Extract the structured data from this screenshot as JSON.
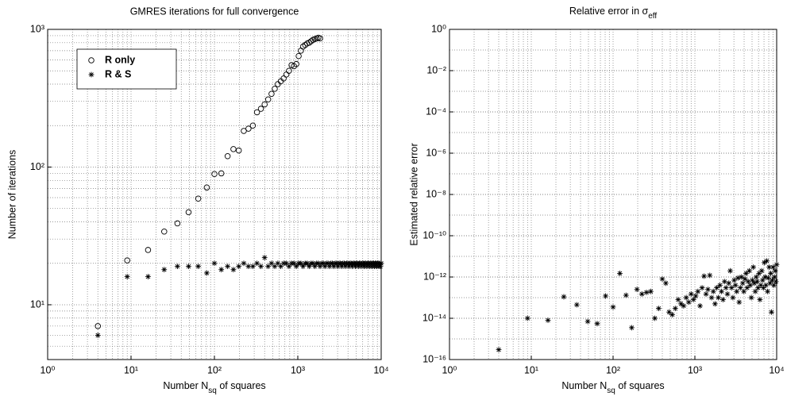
{
  "chart_data": [
    {
      "type": "scatter",
      "title": "GMRES iterations for full convergence",
      "x_label": [
        "Number ",
        "N",
        "sq",
        " of squares"
      ],
      "y_label": "Number of iterations",
      "xscale": "log",
      "yscale": "log",
      "grid": true,
      "minor_grid": true,
      "legend": "upper left",
      "xlim": [
        1,
        10000
      ],
      "ylim": [
        4,
        1000
      ],
      "xticks": [
        {
          "value": 1,
          "label": "10⁰"
        },
        {
          "value": 10,
          "label": "10¹"
        },
        {
          "value": 100,
          "label": "10²"
        },
        {
          "value": 1000,
          "label": "10³"
        },
        {
          "value": 10000,
          "label": "10⁴"
        }
      ],
      "yticks": [
        {
          "value": 10,
          "label": "10¹"
        },
        {
          "value": 100,
          "label": "10²"
        },
        {
          "value": 1000,
          "label": "10³"
        }
      ],
      "series": [
        {
          "name": "R only",
          "color": "#000000",
          "marker": "circle",
          "x": [
            4,
            9,
            16,
            25,
            36,
            49,
            64,
            81,
            100,
            121,
            144,
            169,
            196,
            225,
            256,
            289,
            324,
            361,
            400,
            441,
            484,
            529,
            576,
            625,
            676,
            729,
            784,
            841,
            900,
            961,
            1024,
            1089,
            1156,
            1225,
            1296,
            1369,
            1444,
            1521,
            1600,
            1681,
            1764,
            1849
          ],
          "values": [
            7,
            21,
            25,
            34,
            39,
            47,
            59,
            71,
            89,
            90,
            120,
            135,
            132,
            183,
            190,
            200,
            250,
            265,
            285,
            310,
            340,
            370,
            400,
            420,
            440,
            470,
            500,
            550,
            540,
            560,
            640,
            700,
            750,
            770,
            790,
            800,
            820,
            840,
            850,
            860,
            870,
            860
          ]
        },
        {
          "name": "R & S",
          "color": "#000000",
          "marker": "asterisk",
          "x": [
            4,
            9,
            16,
            25,
            36,
            49,
            64,
            81,
            100,
            121,
            144,
            169,
            196,
            225,
            256,
            289,
            324,
            361,
            400,
            441,
            484,
            529,
            576,
            625,
            676,
            729,
            784,
            841,
            900,
            961,
            1024,
            1089,
            1156,
            1225,
            1296,
            1369,
            1444,
            1521,
            1600,
            1681,
            1764,
            1849,
            1936,
            2025,
            2116,
            2209,
            2304,
            2401,
            2500,
            2601,
            2704,
            2809,
            2916,
            3025,
            3136,
            3249,
            3364,
            3481,
            3600,
            3721,
            3844,
            3969,
            4096,
            4225,
            4356,
            4489,
            4624,
            4761,
            4900,
            5041,
            5184,
            5329,
            5476,
            5625,
            5776,
            5929,
            6084,
            6241,
            6400,
            6561,
            6724,
            6889,
            7056,
            7225,
            7396,
            7569,
            7744,
            7921,
            8100,
            8281,
            8464,
            8649,
            8836,
            9025,
            9216,
            9409,
            9604,
            9801,
            10000
          ],
          "values": [
            6,
            16,
            16,
            18,
            19,
            19,
            19,
            17,
            20,
            18,
            19,
            18,
            19,
            20,
            19,
            19,
            20,
            19,
            22,
            19,
            20,
            19,
            20,
            19,
            20,
            20,
            19,
            20,
            20,
            19,
            20,
            20,
            19,
            20,
            20,
            19,
            20,
            20,
            19,
            20,
            20,
            19,
            20,
            20,
            19,
            20,
            20,
            19,
            20,
            20,
            19,
            20,
            20,
            19,
            20,
            20,
            19,
            20,
            20,
            19,
            20,
            20,
            19,
            20,
            20,
            19,
            20,
            20,
            19,
            20,
            20,
            19,
            20,
            20,
            19,
            20,
            20,
            19,
            20,
            20,
            19,
            20,
            20,
            19,
            20,
            20,
            19,
            20,
            20,
            19,
            20,
            20,
            19,
            20,
            20,
            19,
            20,
            19,
            20
          ]
        }
      ]
    },
    {
      "type": "scatter",
      "title": [
        "Relative error in ",
        "σ",
        "eff"
      ],
      "x_label": [
        "Number ",
        "N",
        "sq",
        " of squares"
      ],
      "y_label": "Estimated relative error",
      "xscale": "log",
      "yscale": "log",
      "grid": true,
      "minor_grid": true,
      "xlim": [
        1,
        10000
      ],
      "ylim": [
        1e-16,
        1
      ],
      "xticks": [
        {
          "value": 1,
          "label": "10⁰"
        },
        {
          "value": 10,
          "label": "10¹"
        },
        {
          "value": 100,
          "label": "10²"
        },
        {
          "value": 1000,
          "label": "10³"
        },
        {
          "value": 10000,
          "label": "10⁴"
        }
      ],
      "yticks": [
        {
          "value": 1,
          "label": "10⁰"
        },
        {
          "value": 0.01,
          "label": "10⁻²"
        },
        {
          "value": 0.0001,
          "label": "10⁻⁴"
        },
        {
          "value": 1e-06,
          "label": "10⁻⁶"
        },
        {
          "value": 1e-08,
          "label": "10⁻⁸"
        },
        {
          "value": 1e-10,
          "label": "10⁻¹⁰"
        },
        {
          "value": 1e-12,
          "label": "10⁻¹²"
        },
        {
          "value": 1e-14,
          "label": "10⁻¹⁴"
        },
        {
          "value": 1e-16,
          "label": "10⁻¹⁶"
        }
      ],
      "series": [
        {
          "color": "#000000",
          "marker": "asterisk",
          "x": [
            4,
            9,
            16,
            25,
            36,
            49,
            64,
            81,
            100,
            121,
            144,
            169,
            196,
            225,
            256,
            289,
            324,
            361,
            400,
            441,
            484,
            529,
            576,
            625,
            676,
            729,
            784,
            841,
            900,
            961,
            1024,
            1089,
            1156,
            1225,
            1296,
            1369,
            1444,
            1521,
            1600,
            1681,
            1764,
            1849,
            1936,
            2025,
            2116,
            2209,
            2304,
            2401,
            2500,
            2601,
            2704,
            2809,
            2916,
            3025,
            3136,
            3249,
            3364,
            3481,
            3600,
            3721,
            3844,
            3969,
            4096,
            4225,
            4356,
            4489,
            4624,
            4761,
            4900,
            5041,
            5184,
            5329,
            5476,
            5625,
            5776,
            5929,
            6084,
            6241,
            6400,
            6561,
            6724,
            6889,
            7056,
            7225,
            7396,
            7569,
            7744,
            7921,
            8100,
            8281,
            8464,
            8649,
            8836,
            9025,
            9216,
            9409,
            9604,
            9801,
            10000
          ],
          "values": [
            3e-16,
            1e-14,
            8e-15,
            1.1e-13,
            4.5e-14,
            7e-15,
            5.5e-15,
            1.2e-13,
            3.5e-14,
            1.5e-12,
            1.3e-13,
            3.5e-15,
            2.5e-13,
            1.5e-13,
            1.8e-13,
            2e-13,
            1e-14,
            3e-14,
            8e-13,
            5e-13,
            2e-14,
            1.5e-14,
            3e-14,
            8e-14,
            5e-14,
            4e-14,
            1e-13,
            6e-14,
            1.5e-13,
            8e-14,
            1.2e-13,
            2e-13,
            4e-14,
            3e-13,
            1.1e-12,
            1.5e-13,
            2.5e-13,
            1.2e-12,
            1e-13,
            2e-13,
            5e-14,
            3e-13,
            1e-13,
            4e-13,
            2e-13,
            8e-14,
            6e-13,
            3e-13,
            1.5e-13,
            5e-13,
            2e-12,
            3e-13,
            1e-13,
            7e-13,
            4e-13,
            2e-13,
            9e-13,
            6e-14,
            3e-13,
            1e-12,
            5e-13,
            2e-13,
            8e-13,
            1.5e-12,
            3e-13,
            6e-13,
            2e-12,
            4e-13,
            1e-13,
            7e-13,
            3e-12,
            5e-13,
            2e-13,
            1e-12,
            6e-13,
            3e-13,
            1.5e-12,
            8e-14,
            4e-13,
            2e-12,
            7e-13,
            3e-13,
            5e-12,
            1e-12,
            4e-13,
            6e-12,
            2e-13,
            9e-13,
            3e-12,
            5e-13,
            1.5e-12,
            2e-14,
            7e-13,
            3e-12,
            4e-13,
            1e-12,
            2e-12,
            6e-13,
            4e-12
          ]
        }
      ]
    }
  ]
}
